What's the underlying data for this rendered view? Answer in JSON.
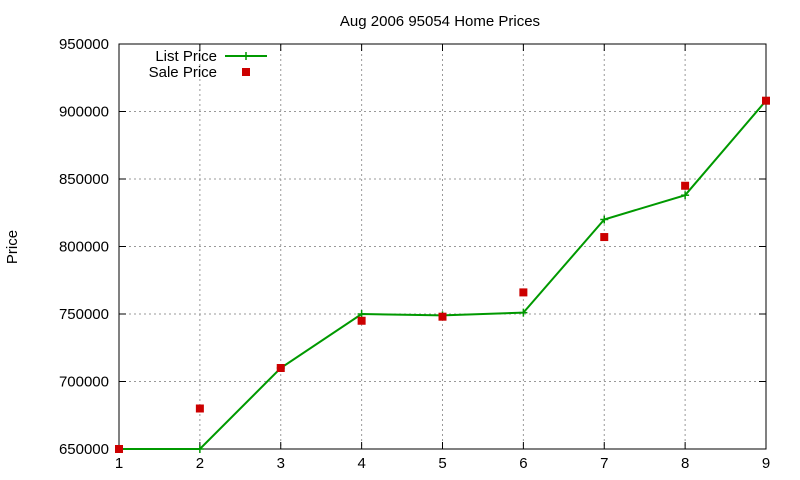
{
  "chart_data": {
    "type": "line",
    "title": "Aug 2006 95054 Home Prices",
    "ylabel": "Price",
    "xlabel": "",
    "x": [
      1,
      2,
      3,
      4,
      5,
      6,
      7,
      8,
      9
    ],
    "xlim": [
      1,
      9
    ],
    "ylim": [
      650000,
      950000
    ],
    "x_ticks": [
      "1",
      "2",
      "3",
      "4",
      "5",
      "6",
      "7",
      "8",
      "9"
    ],
    "y_ticks": [
      "650000",
      "700000",
      "750000",
      "800000",
      "850000",
      "900000",
      "950000"
    ],
    "grid": true,
    "legend_position": "top-left",
    "series": [
      {
        "name": "List Price",
        "style": "line+cross",
        "color": "#009900",
        "values": [
          650000,
          650000,
          710000,
          750000,
          749000,
          751000,
          820000,
          838000,
          908000
        ]
      },
      {
        "name": "Sale Price",
        "style": "square-points",
        "color": "#cc0000",
        "values": [
          650000,
          680000,
          710000,
          745000,
          748000,
          766000,
          807000,
          845000,
          908000
        ]
      }
    ]
  }
}
